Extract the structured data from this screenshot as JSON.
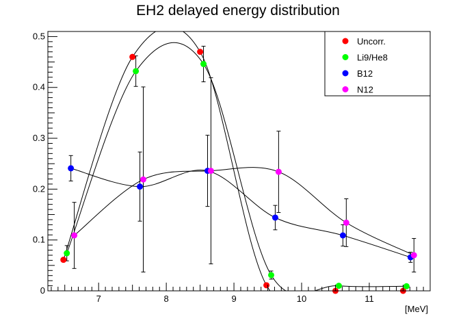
{
  "chart_data": {
    "type": "scatter",
    "title": "EH2 delayed energy distribution",
    "xlabel": "[MeV]",
    "ylabel": "",
    "xlim": [
      6.25,
      11.9
    ],
    "ylim": [
      0,
      0.51
    ],
    "x_ticks": [
      7,
      8,
      9,
      10,
      11
    ],
    "y_ticks": [
      0,
      0.1,
      0.2,
      0.3,
      0.4,
      0.5
    ],
    "x_tick_labels": [
      "7",
      "8",
      "9",
      "10",
      "11"
    ],
    "y_tick_labels": [
      "0",
      "0.1",
      "0.2",
      "0.3",
      "0.4",
      "0.5"
    ],
    "grid": false,
    "legend_position": "top-right",
    "series": [
      {
        "name": "Uncorr.",
        "color": "#ff0000",
        "x": [
          6.48,
          7.5,
          8.5,
          9.48,
          10.5,
          11.5
        ],
        "y": [
          0.061,
          0.46,
          0.47,
          0.011,
          0.0,
          0.0
        ],
        "err": [
          0,
          0,
          0,
          0,
          0,
          0
        ]
      },
      {
        "name": "Li9/He8",
        "color": "#00ff00",
        "x": [
          6.53,
          7.55,
          8.55,
          9.55,
          10.55,
          11.55
        ],
        "y": [
          0.074,
          0.432,
          0.446,
          0.031,
          0.01,
          0.009
        ],
        "err": [
          0.015,
          0.03,
          0.035,
          0.008,
          0.003,
          0.003
        ]
      },
      {
        "name": "B12",
        "color": "#0000ff",
        "x": [
          6.59,
          7.61,
          8.61,
          9.61,
          10.61,
          11.61
        ],
        "y": [
          0.241,
          0.205,
          0.236,
          0.144,
          0.109,
          0.066
        ],
        "err": [
          0.025,
          0.068,
          0.07,
          0.024,
          0.021,
          0.01
        ]
      },
      {
        "name": "N12",
        "color": "#ff00ff",
        "x": [
          6.64,
          7.66,
          8.66,
          9.66,
          10.66,
          11.66
        ],
        "y": [
          0.109,
          0.219,
          0.236,
          0.234,
          0.134,
          0.07
        ],
        "err": [
          0.065,
          0.182,
          0.183,
          0.08,
          0.047,
          0.033
        ]
      }
    ]
  }
}
